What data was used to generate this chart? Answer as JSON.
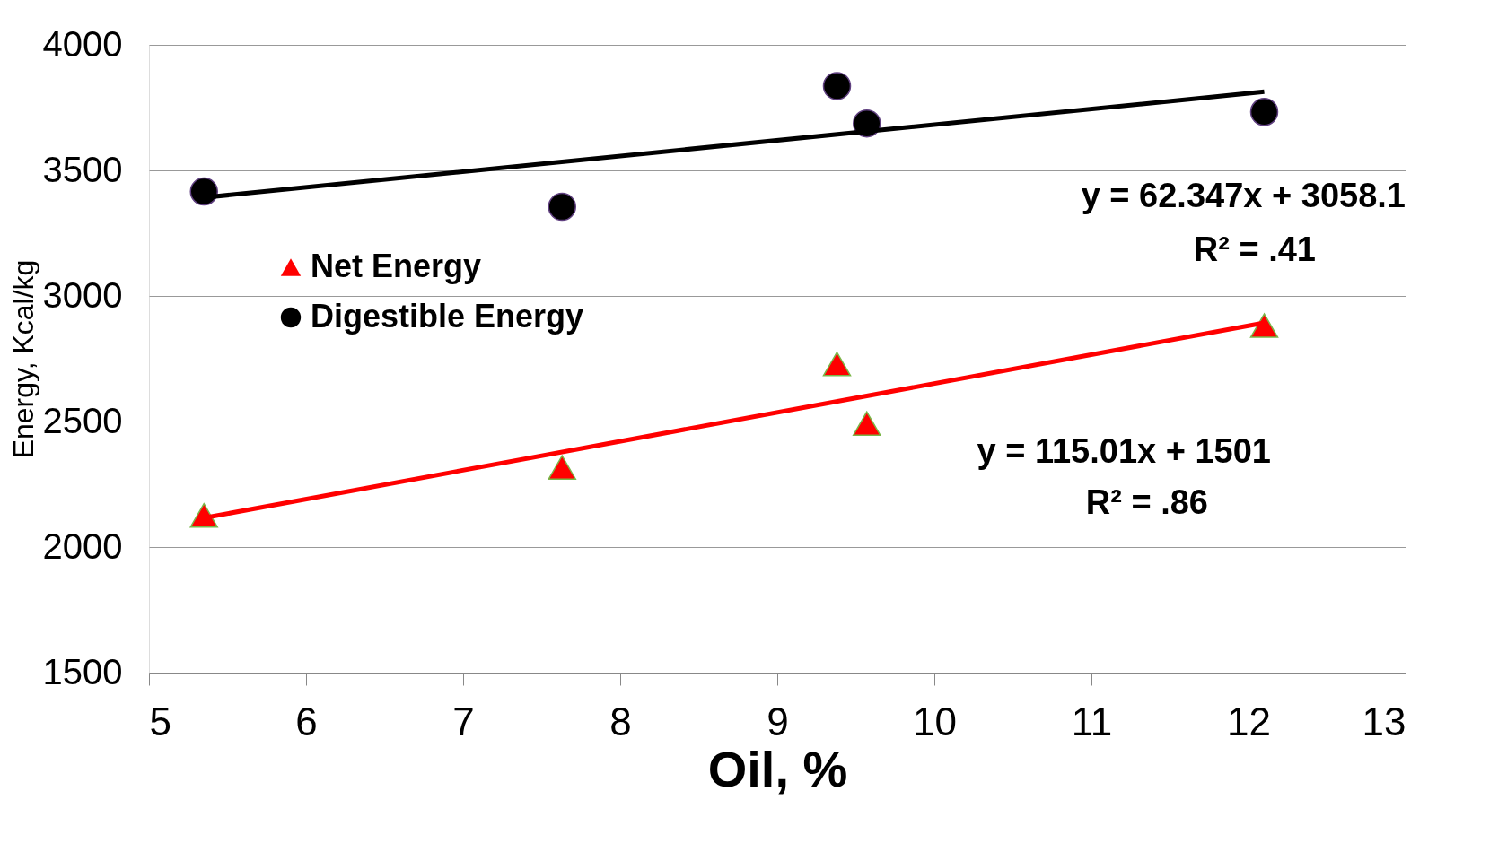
{
  "chart_data": {
    "type": "scatter",
    "xlabel": "Oil, %",
    "ylabel": "Energy, Kcal/kg",
    "xlim": [
      5,
      13
    ],
    "xticks": [
      5,
      6,
      7,
      8,
      9,
      10,
      11,
      12,
      13
    ],
    "ylim": [
      1500,
      4000
    ],
    "yticks": [
      1500,
      2000,
      2500,
      3000,
      3500,
      4000
    ],
    "grid": "y",
    "legend": "left",
    "series": [
      {
        "name": "Net Energy",
        "marker": "triangle",
        "color": "#ff0000",
        "x": [
          5.35,
          7.63,
          9.38,
          9.57,
          12.1
        ],
        "values": [
          2126,
          2317,
          2729,
          2492,
          2882
        ]
      },
      {
        "name": "Digestible Energy",
        "marker": "circle",
        "color": "#000000",
        "x": [
          5.35,
          7.63,
          9.38,
          9.57,
          12.1
        ],
        "values": [
          3416,
          3355,
          3836,
          3687,
          3733
        ]
      },
      {
        "type": "line",
        "color": "#000000",
        "x": [
          5.35,
          12.1
        ],
        "values": [
          3392,
          3813
        ]
      },
      {
        "type": "line",
        "color": "#ff0000",
        "x": [
          5.35,
          12.1
        ],
        "values": [
          2116,
          2893
        ]
      }
    ],
    "annotations": [
      "y = 62.347x + 3058.1",
      "R² = .41",
      "y = 115.01x + 1501",
      "R² = .86"
    ]
  }
}
